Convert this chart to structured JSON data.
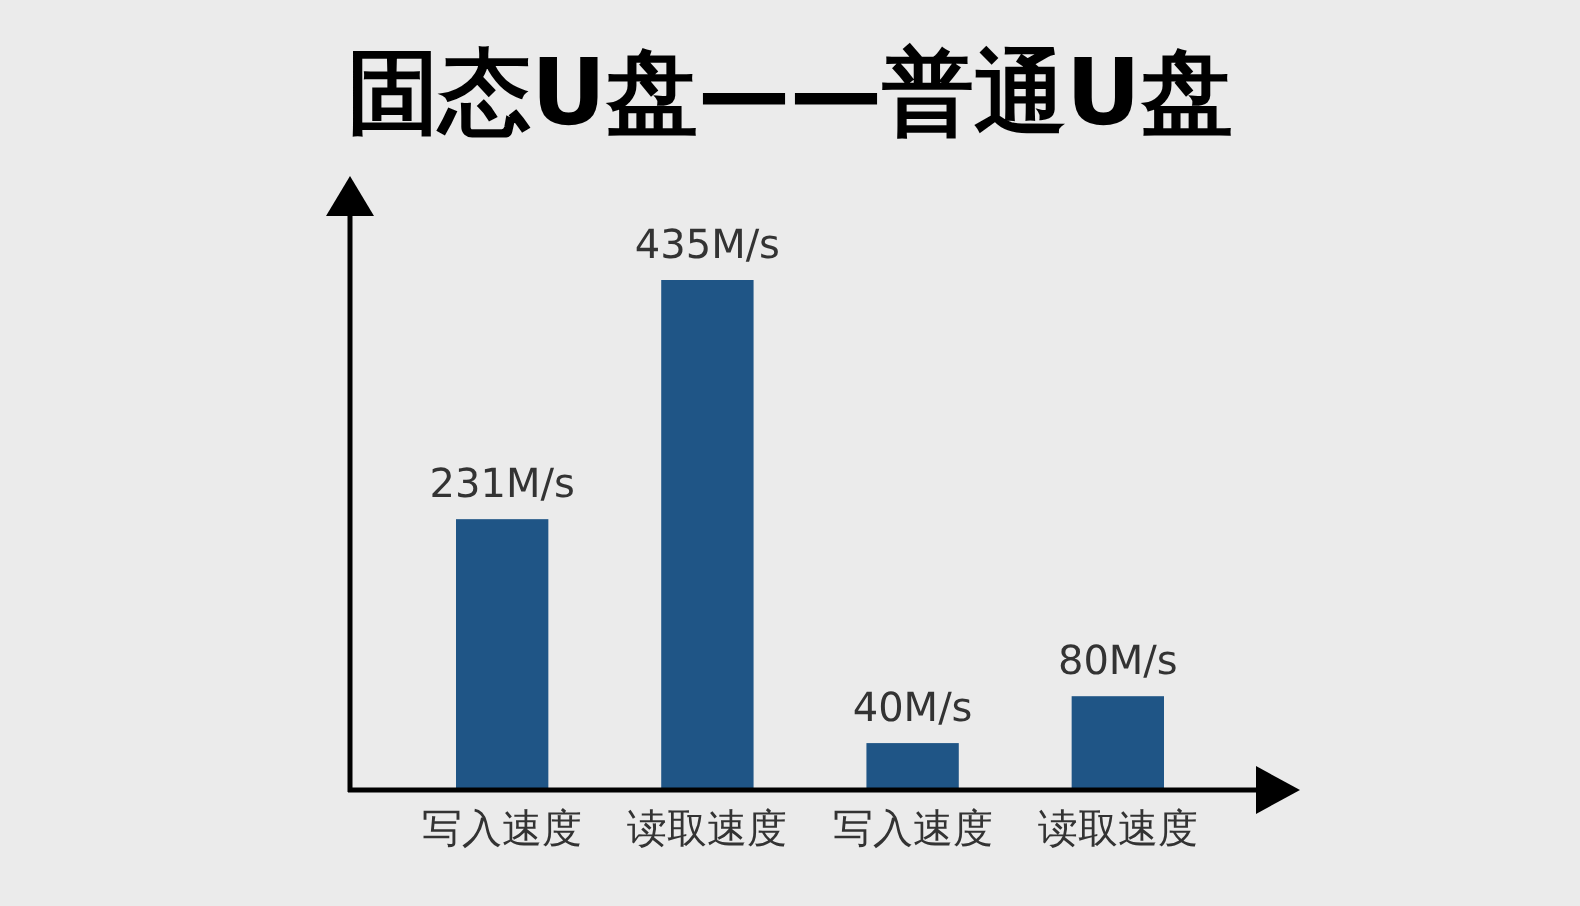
{
  "chart_data": {
    "type": "bar",
    "title": "固态U盘——普通U盘",
    "categories": [
      "写入速度",
      "读取速度",
      "写入速度",
      "读取速度"
    ],
    "values": [
      231,
      435,
      40,
      80
    ],
    "color": "#1f5586",
    "value_labels": [
      "231M/s",
      "435M/s",
      "40M/s",
      "80M/s"
    ],
    "tick_labels": "x"
  }
}
